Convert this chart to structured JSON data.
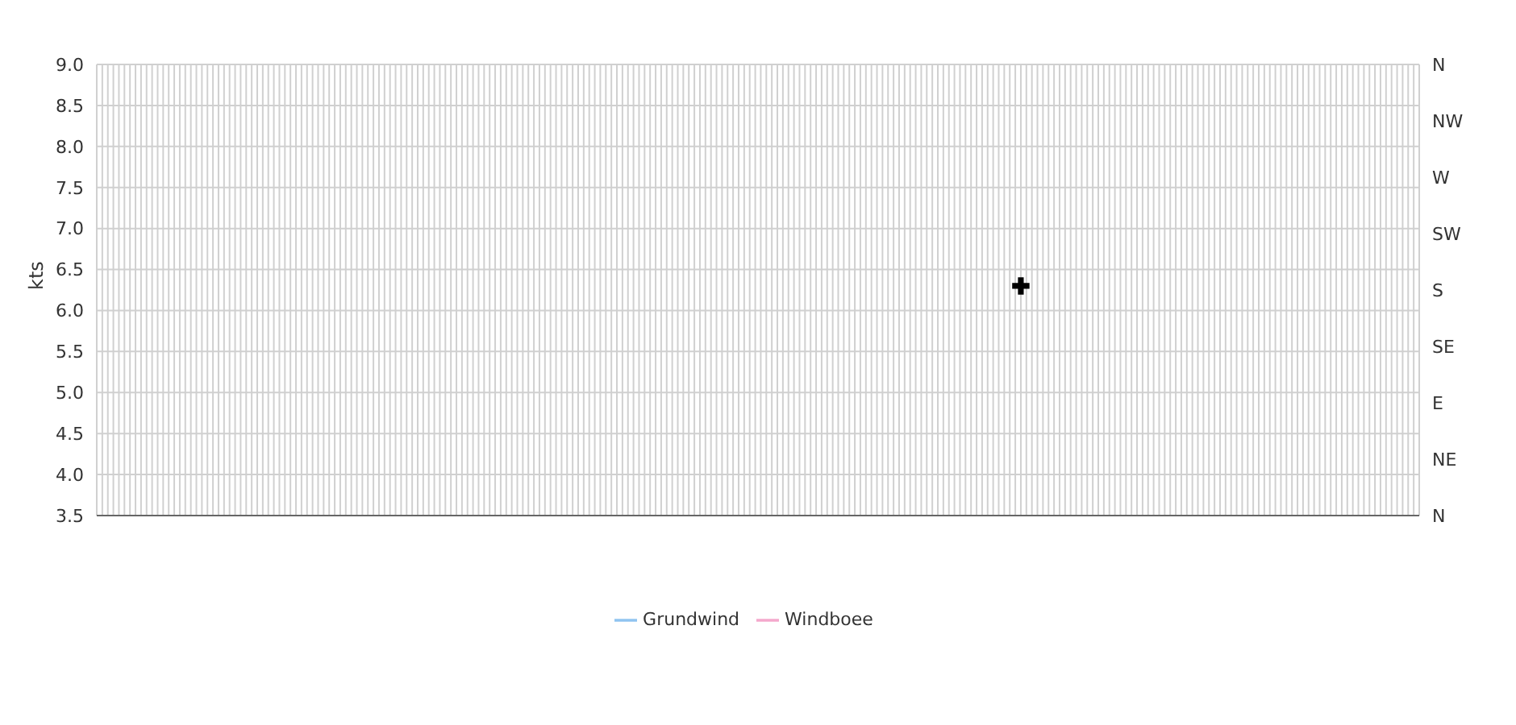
{
  "chart_data": {
    "type": "line",
    "ylabel": "kts",
    "legend": "bottom",
    "grid": true,
    "categories": [
      null,
      null,
      null,
      null,
      null,
      null,
      null,
      null,
      null,
      null,
      null,
      null,
      null,
      null,
      null,
      null,
      null,
      null,
      null,
      null,
      null,
      null,
      null,
      null,
      null,
      null,
      null,
      null,
      null,
      null,
      null,
      null,
      null,
      null,
      null,
      null,
      null,
      null,
      null,
      null,
      null,
      null,
      null,
      null,
      null,
      null,
      null,
      null,
      null,
      null,
      null,
      null,
      null,
      null,
      null,
      null,
      null,
      null,
      null,
      null,
      null,
      null,
      null,
      null,
      null,
      null,
      null,
      null,
      null,
      null,
      null,
      null,
      null,
      null,
      null,
      null,
      null,
      null,
      null,
      null,
      null,
      null,
      null,
      null,
      null,
      null,
      null,
      null,
      null,
      null,
      null,
      null,
      null,
      null,
      null,
      null,
      null,
      null,
      null,
      null,
      null,
      null,
      null,
      null,
      null,
      null,
      null,
      null,
      null,
      null,
      null,
      null,
      null,
      null,
      null,
      null,
      null,
      null,
      null,
      null,
      null,
      null,
      null,
      null,
      null,
      null,
      null,
      null,
      null,
      null,
      null,
      null,
      null,
      null,
      null,
      null,
      null,
      null,
      null,
      null,
      null,
      null,
      null,
      null,
      null,
      null,
      null,
      null,
      null,
      null,
      null,
      null,
      null,
      null,
      null,
      null,
      null,
      null,
      null,
      null,
      null,
      null,
      null,
      null,
      null,
      null,
      null,
      null,
      null,
      null,
      null,
      null,
      null,
      null,
      null,
      null,
      null,
      null,
      null,
      null,
      null,
      null,
      null,
      null,
      null,
      null,
      null,
      null,
      null,
      null,
      null,
      null,
      null,
      null,
      null,
      null,
      null,
      null,
      null,
      null,
      null,
      null,
      null,
      null,
      null,
      null,
      null,
      null,
      null,
      null,
      null,
      null,
      null,
      null,
      null,
      null,
      null,
      null,
      null,
      null,
      null,
      null,
      null,
      null,
      null,
      null,
      null,
      null,
      null,
      null,
      null,
      null,
      null,
      null,
      null,
      null,
      null,
      null,
      null,
      null
    ],
    "ylim": [
      3.5,
      9.0
    ],
    "yticks": [
      {
        "value": 3.5,
        "label": "3.5"
      },
      {
        "value": 4.0,
        "label": "4.0"
      },
      {
        "value": 4.5,
        "label": "4.5"
      },
      {
        "value": 5.0,
        "label": "5.0"
      },
      {
        "value": 5.5,
        "label": "5.5"
      },
      {
        "value": 6.0,
        "label": "6.0"
      },
      {
        "value": 6.5,
        "label": "6.5"
      },
      {
        "value": 7.0,
        "label": "7.0"
      },
      {
        "value": 7.5,
        "label": "7.5"
      },
      {
        "value": 8.0,
        "label": "8.0"
      },
      {
        "value": 8.5,
        "label": "8.5"
      },
      {
        "value": 9.0,
        "label": "9.0"
      }
    ],
    "y2_categories": [
      "N",
      "NW",
      "W",
      "SW",
      "S",
      "SE",
      "E",
      "NE",
      "N"
    ],
    "series": [
      {
        "name": "Grundwind",
        "color": "#90c4f0",
        "values": [
          null,
          null,
          null,
          null,
          null,
          null,
          null,
          null,
          null,
          null,
          null,
          null,
          null,
          null,
          null,
          null,
          null,
          null,
          null,
          null,
          null,
          null,
          null,
          null,
          null,
          null,
          null,
          null,
          null,
          null,
          null,
          null,
          null,
          null,
          null,
          null,
          null,
          null,
          null,
          null,
          null,
          null,
          null,
          null,
          null,
          null,
          null,
          null,
          null,
          null,
          null,
          null,
          null,
          null,
          null,
          null,
          null,
          null,
          null,
          null,
          null,
          null,
          null,
          null,
          null,
          null,
          null,
          null,
          null,
          null,
          null,
          null,
          null,
          null,
          null,
          null,
          null,
          null,
          null,
          null,
          null,
          null,
          null,
          null,
          null,
          null,
          null,
          null,
          null,
          null,
          null,
          null,
          null,
          null,
          null,
          null,
          null,
          null,
          null,
          null,
          null,
          null,
          null,
          null,
          null,
          null,
          null,
          null,
          null,
          null,
          null,
          null,
          null,
          null,
          null,
          null,
          null,
          null,
          null,
          null,
          null,
          null,
          null,
          null,
          null,
          null,
          null,
          null,
          null,
          null,
          null,
          null,
          null,
          null,
          null,
          null,
          null,
          null,
          null,
          null,
          null,
          null,
          null,
          null,
          null,
          null,
          null,
          null,
          null,
          null,
          null,
          null,
          null,
          null,
          null,
          null,
          null,
          null,
          null,
          null,
          null,
          null,
          null,
          null,
          null,
          null,
          null,
          null,
          null,
          null,
          null,
          null,
          null,
          null,
          null,
          null,
          null,
          null,
          null,
          null,
          null,
          null,
          null,
          null,
          null,
          null,
          null,
          null,
          null,
          null,
          null,
          null,
          null,
          null,
          null,
          null,
          null,
          null,
          null,
          null,
          null,
          null,
          null,
          null,
          null,
          null,
          null,
          null,
          null,
          null,
          null,
          null,
          null,
          null,
          null,
          null,
          null,
          null,
          null,
          null,
          null,
          null,
          null,
          null,
          null,
          null,
          null,
          null,
          null,
          null,
          null,
          null,
          null,
          null,
          null,
          null,
          null,
          null,
          null,
          null
        ]
      },
      {
        "name": "Windboee",
        "color": "#f4a8cc",
        "values": [
          null,
          null,
          null,
          null,
          null,
          null,
          null,
          null,
          null,
          null,
          null,
          null,
          null,
          null,
          null,
          null,
          null,
          null,
          null,
          null,
          null,
          null,
          null,
          null,
          null,
          null,
          null,
          null,
          null,
          null,
          null,
          null,
          null,
          null,
          null,
          null,
          null,
          null,
          null,
          null,
          null,
          null,
          null,
          null,
          null,
          null,
          null,
          null,
          null,
          null,
          null,
          null,
          null,
          null,
          null,
          null,
          null,
          null,
          null,
          null,
          null,
          null,
          null,
          null,
          null,
          null,
          null,
          null,
          null,
          null,
          null,
          null,
          null,
          null,
          null,
          null,
          null,
          null,
          null,
          null,
          null,
          null,
          null,
          null,
          null,
          null,
          null,
          null,
          null,
          null,
          null,
          null,
          null,
          null,
          null,
          null,
          null,
          null,
          null,
          null,
          null,
          null,
          null,
          null,
          null,
          null,
          null,
          null,
          null,
          null,
          null,
          null,
          null,
          null,
          null,
          null,
          null,
          null,
          null,
          null,
          null,
          null,
          null,
          null,
          null,
          null,
          null,
          null,
          null,
          null,
          null,
          null,
          null,
          null,
          null,
          null,
          null,
          null,
          null,
          null,
          null,
          null,
          null,
          null,
          null,
          null,
          null,
          null,
          null,
          null,
          null,
          null,
          null,
          null,
          null,
          null,
          null,
          null,
          null,
          null,
          null,
          null,
          null,
          null,
          null,
          null,
          null,
          null,
          null,
          null,
          null,
          null,
          null,
          null,
          null,
          null,
          null,
          null,
          null,
          null,
          null,
          null,
          null,
          null,
          null,
          null,
          null,
          null,
          null,
          null,
          null,
          null,
          null,
          null,
          null,
          null,
          null,
          null,
          null,
          null,
          null,
          null,
          null,
          null,
          null,
          null,
          null,
          null,
          null,
          null,
          null,
          null,
          null,
          null,
          null,
          null,
          null,
          null,
          null,
          null,
          null,
          null,
          null,
          null,
          null,
          null,
          null,
          null,
          null,
          null,
          null,
          null,
          null,
          null,
          null,
          null,
          null,
          null,
          null,
          null
        ]
      },
      {
        "type": "scatter",
        "marker": "cross",
        "color": "#000000",
        "values": [
          null,
          null,
          null,
          null,
          null,
          null,
          null,
          null,
          null,
          null,
          null,
          null,
          null,
          null,
          null,
          null,
          null,
          null,
          null,
          null,
          null,
          null,
          null,
          null,
          null,
          null,
          null,
          null,
          null,
          null,
          null,
          null,
          null,
          null,
          null,
          null,
          null,
          null,
          null,
          null,
          null,
          null,
          null,
          null,
          null,
          null,
          null,
          null,
          null,
          null,
          null,
          null,
          null,
          null,
          null,
          null,
          null,
          null,
          null,
          null,
          null,
          null,
          null,
          null,
          null,
          null,
          null,
          null,
          null,
          null,
          null,
          null,
          null,
          null,
          null,
          null,
          null,
          null,
          null,
          null,
          null,
          null,
          null,
          null,
          null,
          null,
          null,
          null,
          null,
          null,
          null,
          null,
          null,
          null,
          null,
          null,
          null,
          null,
          null,
          null,
          null,
          null,
          null,
          null,
          null,
          null,
          null,
          null,
          null,
          null,
          null,
          null,
          null,
          null,
          null,
          null,
          null,
          null,
          null,
          null,
          null,
          null,
          null,
          null,
          null,
          null,
          null,
          null,
          null,
          null,
          null,
          null,
          null,
          null,
          null,
          null,
          null,
          null,
          null,
          null,
          null,
          null,
          null,
          null,
          null,
          null,
          null,
          null,
          null,
          null,
          null,
          null,
          null,
          null,
          null,
          null,
          null,
          null,
          null,
          null,
          null,
          null,
          null,
          null,
          null,
          null,
          null,
          6.3,
          null,
          null,
          null,
          null,
          null,
          null,
          null,
          null,
          null,
          null,
          null,
          null,
          null,
          null,
          null,
          null,
          null,
          null,
          null,
          null,
          null,
          null,
          null,
          null,
          null,
          null,
          null,
          null,
          null,
          null,
          null,
          null,
          null,
          null,
          null,
          null,
          null,
          null,
          null,
          null,
          null,
          null,
          null,
          null,
          null,
          null,
          null,
          null,
          null,
          null,
          null,
          null,
          null,
          null,
          null,
          null,
          null,
          null,
          null,
          null,
          null,
          null,
          null,
          null,
          null,
          null,
          null,
          null,
          null,
          null,
          null,
          null
        ]
      }
    ]
  }
}
